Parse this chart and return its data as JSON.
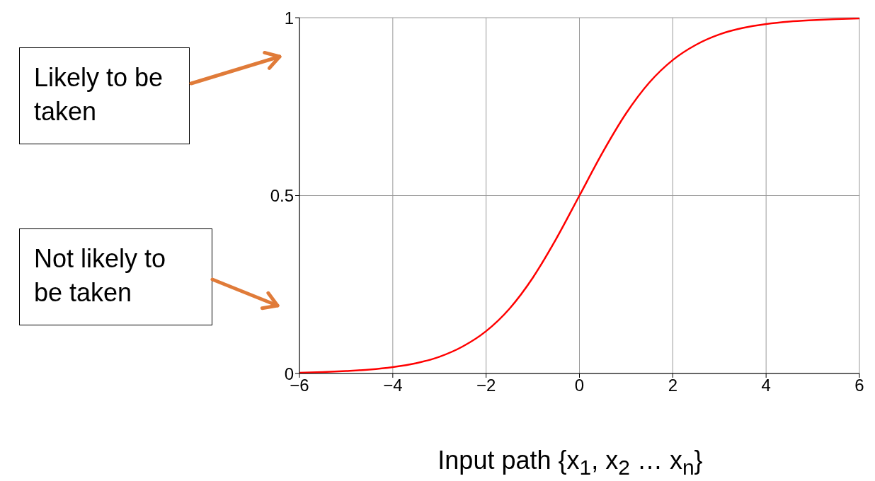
{
  "chart_data": {
    "type": "line",
    "xlabel": "Input path {x$_{1}$, x$_{2}$ … x$_{n}$}",
    "annotations": [
      "Likely to be taken",
      "Not likely to be taken"
    ],
    "x": [
      -6,
      -5.5,
      -5,
      -4.5,
      -4,
      -3.5,
      -3,
      -2.5,
      -2,
      -1.5,
      -1,
      -0.5,
      0,
      0.5,
      1,
      1.5,
      2,
      2.5,
      3,
      3.5,
      4,
      4.5,
      5,
      5.5,
      6
    ],
    "series": [
      {
        "color": "#ff0000",
        "values": [
          0.002,
          0.004,
          0.007,
          0.011,
          0.018,
          0.029,
          0.047,
          0.076,
          0.119,
          0.182,
          0.269,
          0.378,
          0.5,
          0.622,
          0.731,
          0.818,
          0.881,
          0.924,
          0.953,
          0.971,
          0.982,
          0.989,
          0.993,
          0.996,
          0.998
        ]
      }
    ],
    "xlim": [
      -6,
      6
    ],
    "xticks": [
      {
        "value": -6,
        "label": "−6"
      },
      {
        "value": -4,
        "label": "−4"
      },
      {
        "value": -2,
        "label": "−2"
      },
      0,
      2,
      4,
      6
    ],
    "ylim": [
      0,
      1
    ],
    "yticks": [
      0,
      0.5,
      1
    ],
    "grid": true,
    "marker": "none",
    "line_style": "solid"
  }
}
